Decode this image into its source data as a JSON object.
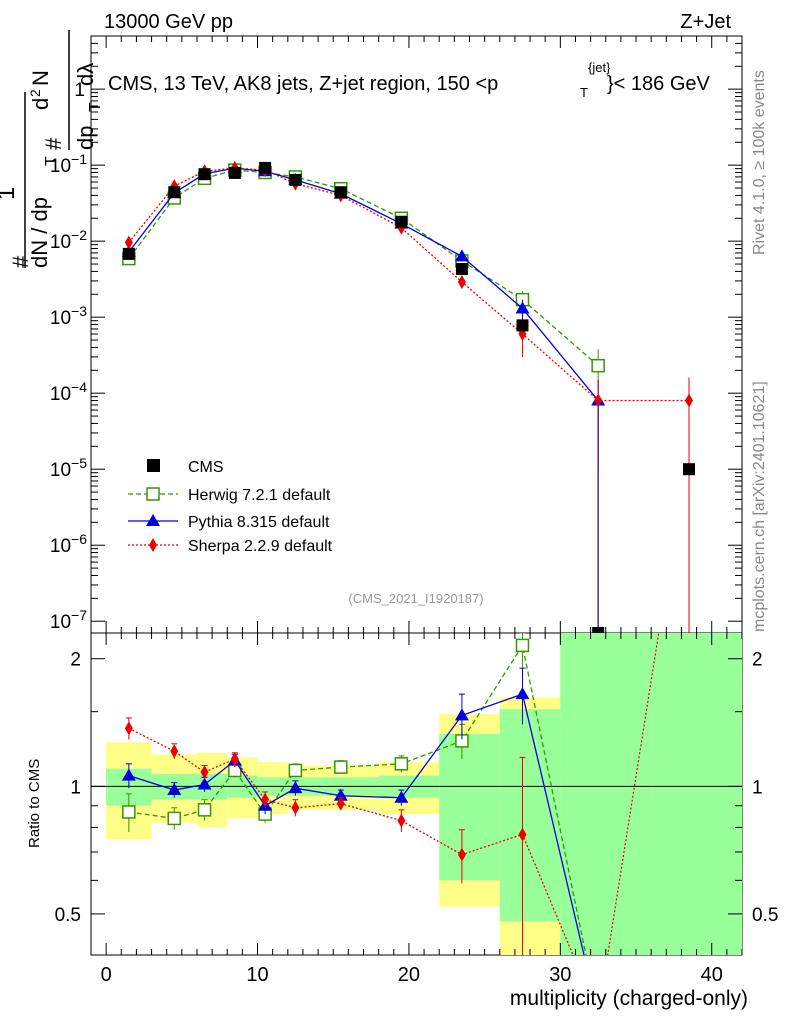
{
  "header": {
    "left": "13000 GeV pp",
    "right": "Z+Jet"
  },
  "upper": {
    "title": "CMS, 13 TeV, AK8 jets, Z+jet region, 150 <p_T^{jet}< 186 GeV",
    "title_parts": [
      "CMS, 13 TeV, AK8 jets, Z+jet region, 150 <p",
      "{jet}",
      "T",
      "}< 186 GeV"
    ],
    "ylabel_parts": [
      "#",
      "1",
      "dN / dp",
      "T",
      "#",
      "d",
      "2",
      "N",
      "dp",
      "T",
      "dλ"
    ],
    "analysis_tag": "(CMS_2021_I1920187)"
  },
  "side_labels": {
    "rivet": "Rivet 4.1.0, ≥ 100k events",
    "mcplots": "mcplots.cern.ch [arXiv:2401.10621]"
  },
  "legend": {
    "cms": "CMS",
    "herwig": "Herwig 7.2.1 default",
    "pythia": "Pythia 8.315 default",
    "sherpa": "Sherpa 2.2.9 default"
  },
  "colors": {
    "herwig": "#339900",
    "pythia": "#0000dd",
    "sherpa": "#ee0000",
    "band_stat": "#99ff99",
    "band_syst": "#ffff88"
  },
  "chart_data": {
    "type": "scatter",
    "xlabel": "multiplicity (charged-only)",
    "ylabel_main": "1/N dN/dp_T d²N/dp_T dλ",
    "ylabel_ratio": "Ratio to CMS",
    "xlim": [
      -1,
      42
    ],
    "xticks": [
      "0",
      "10",
      "20",
      "30",
      "40"
    ],
    "ylim_main": [
      7e-08,
      5
    ],
    "yticks_main": [
      "10^-7",
      "10^-6",
      "10^-5",
      "10^-4",
      "10^-3",
      "10^-2",
      "10^-1",
      "1"
    ],
    "ylim_ratio": [
      0.4,
      2.3
    ],
    "yticks_ratio": [
      "0.5",
      "1",
      "2"
    ],
    "bins": [
      [
        0,
        3
      ],
      [
        3,
        6
      ],
      [
        6,
        8
      ],
      [
        8,
        10
      ],
      [
        10,
        12
      ],
      [
        12,
        14
      ],
      [
        14,
        18
      ],
      [
        18,
        22
      ],
      [
        22,
        26
      ],
      [
        26,
        30
      ],
      [
        30,
        36
      ],
      [
        36,
        42
      ]
    ],
    "series": [
      {
        "name": "CMS",
        "x": [
          1.5,
          4.5,
          6.5,
          8.5,
          10.5,
          12.5,
          15.5,
          19.5,
          23.5,
          27.5,
          32.5,
          38.5
        ],
        "y": [
          0.0068,
          0.044,
          0.076,
          0.079,
          0.092,
          0.064,
          0.044,
          0.018,
          0.0043,
          0.00078,
          7e-08,
          1e-05
        ]
      },
      {
        "name": "Herwig 7.2.1 default",
        "x": [
          1.5,
          4.5,
          6.5,
          8.5,
          10.5,
          12.5,
          15.5,
          19.5,
          23.5,
          27.5,
          32.5
        ],
        "y": [
          0.0059,
          0.037,
          0.067,
          0.086,
          0.08,
          0.07,
          0.049,
          0.02,
          0.0055,
          0.0017,
          0.00023
        ],
        "err": [
          0.0004,
          0.002,
          0.003,
          0.003,
          0.003,
          0.003,
          0.002,
          0.001,
          0.0004,
          0.0005,
          0.00015
        ]
      },
      {
        "name": "Pythia 8.315 default",
        "x": [
          1.5,
          4.5,
          6.5,
          8.5,
          10.5,
          12.5,
          15.5,
          19.5,
          23.5,
          27.5,
          32.5
        ],
        "y": [
          0.0072,
          0.043,
          0.077,
          0.091,
          0.083,
          0.064,
          0.042,
          0.017,
          0.0063,
          0.0013,
          8e-05
        ],
        "err": [
          0.0005,
          0.002,
          0.003,
          0.003,
          0.003,
          0.003,
          0.002,
          0.001,
          0.0004,
          0.0004,
          7e-05
        ]
      },
      {
        "name": "Sherpa 2.2.9 default",
        "x": [
          1.5,
          4.5,
          6.5,
          8.5,
          10.5,
          12.5,
          15.5,
          19.5,
          23.5,
          27.5,
          32.5,
          38.5
        ],
        "y": [
          0.0096,
          0.053,
          0.083,
          0.092,
          0.086,
          0.057,
          0.04,
          0.015,
          0.0029,
          0.0006,
          8e-05,
          8e-05
        ],
        "err": [
          0.0006,
          0.003,
          0.003,
          0.004,
          0.003,
          0.003,
          0.002,
          0.001,
          0.0005,
          0.0003,
          7e-05,
          8e-05
        ]
      }
    ],
    "ratio": {
      "herwig": [
        0.87,
        0.84,
        0.88,
        1.09,
        0.86,
        1.09,
        1.11,
        1.13,
        1.28,
        2.15,
        0.0
      ],
      "herwig_err": [
        0.09,
        0.05,
        0.05,
        0.04,
        0.04,
        0.04,
        0.04,
        0.05,
        0.12,
        0.55,
        0.0
      ],
      "pythia": [
        1.06,
        0.98,
        1.01,
        1.15,
        0.9,
        0.99,
        0.95,
        0.94,
        1.47,
        1.65,
        0.0
      ],
      "pythia_err": [
        0.07,
        0.04,
        0.04,
        0.04,
        0.04,
        0.04,
        0.03,
        0.04,
        0.18,
        0.25,
        0.0
      ],
      "sherpa": [
        1.37,
        1.21,
        1.08,
        1.16,
        0.93,
        0.89,
        0.91,
        0.83,
        0.69,
        0.77,
        0.0,
        0.0
      ],
      "sherpa_err": [
        0.08,
        0.05,
        0.04,
        0.04,
        0.04,
        0.04,
        0.03,
        0.05,
        0.1,
        0.4,
        0.0,
        0.0
      ],
      "band_stat": [
        [
          0.9,
          1.1
        ],
        [
          0.93,
          1.07
        ],
        [
          0.93,
          1.07
        ],
        [
          0.94,
          1.06
        ],
        [
          0.95,
          1.05
        ],
        [
          0.95,
          1.05
        ],
        [
          0.95,
          1.05
        ],
        [
          0.94,
          1.06
        ],
        [
          0.6,
          1.33
        ],
        [
          0.48,
          1.52
        ],
        [
          0.0,
          2.5
        ],
        [
          0.0,
          2.5
        ]
      ],
      "band_syst": [
        [
          0.75,
          1.27
        ],
        [
          0.82,
          1.19
        ],
        [
          0.8,
          1.2
        ],
        [
          0.84,
          1.17
        ],
        [
          0.86,
          1.14
        ],
        [
          0.88,
          1.12
        ],
        [
          0.88,
          1.12
        ],
        [
          0.86,
          1.14
        ],
        [
          0.52,
          1.48
        ],
        [
          0.3,
          1.62
        ],
        [
          0.0,
          2.5
        ],
        [
          0.0,
          2.5
        ]
      ]
    }
  }
}
